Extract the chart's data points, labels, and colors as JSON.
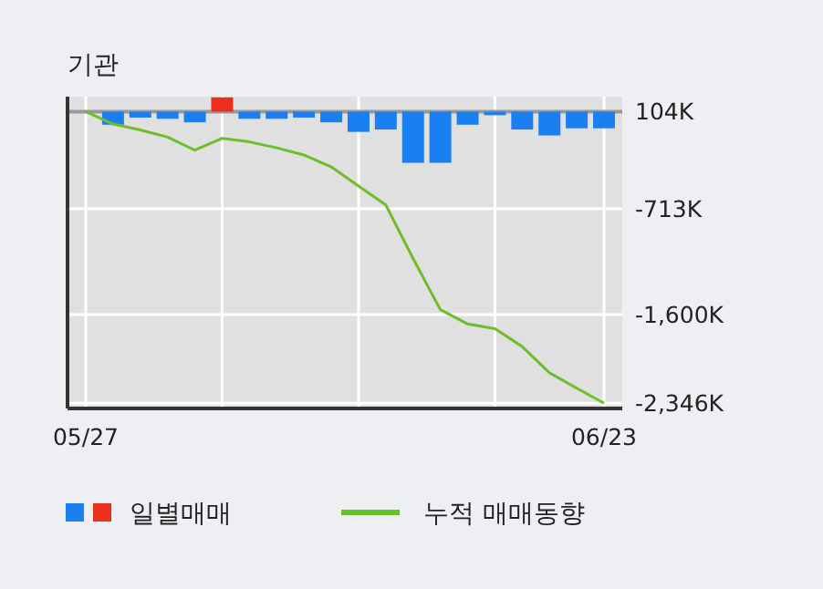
{
  "chart_data": {
    "type": "bar",
    "title": "기관",
    "categories": [
      "05/27",
      null,
      null,
      null,
      null,
      null,
      null,
      null,
      null,
      null,
      null,
      null,
      null,
      null,
      null,
      null,
      null,
      null,
      null,
      "06/23"
    ],
    "series": [
      {
        "name": "일별매매",
        "colors": [
          "#1a7ff0",
          "#1a7ff0",
          "#1a7ff0",
          "#1a7ff0",
          "#1a7ff0",
          "#e8301c",
          "#1a7ff0",
          "#1a7ff0",
          "#1a7ff0",
          "#1a7ff0",
          "#1a7ff0",
          "#1a7ff0",
          "#1a7ff0",
          "#1a7ff0",
          "#1a7ff0",
          "#1a7ff0",
          "#1a7ff0",
          "#1a7ff0",
          "#1a7ff0",
          "#1a7ff0"
        ],
        "base": [
          null,
          104,
          104,
          104,
          104,
          104,
          104,
          104,
          104,
          104,
          104,
          104,
          104,
          104,
          104,
          104,
          104,
          104,
          104,
          104
        ],
        "values": [
          null,
          -110,
          -50,
          -60,
          -90,
          120,
          -60,
          -60,
          -50,
          -90,
          -170,
          -150,
          -430,
          -430,
          -110,
          -30,
          -150,
          -200,
          -140,
          -140
        ]
      },
      {
        "name": "누적 매매동향",
        "type": "line",
        "color": "#6cbf2a",
        "values": [
          104,
          0,
          -50,
          -110,
          -220,
          -120,
          -150,
          -200,
          -260,
          -360,
          -520,
          -680,
          -1130,
          -1560,
          -1680,
          -1720,
          -1870,
          -2090,
          -2220,
          -2346
        ]
      }
    ],
    "ylim": [
      -2390,
      230
    ],
    "yticks": [
      {
        "value": 104,
        "label": "104K"
      },
      {
        "value": -713,
        "label": "-713K"
      },
      {
        "value": -1600,
        "label": "-1,600K"
      },
      {
        "value": -2346,
        "label": "-2,346K"
      }
    ],
    "ref_lines": [
      {
        "axis": "y",
        "value": 104,
        "color": "#999999"
      }
    ],
    "grid": true,
    "legend": "bottom"
  }
}
